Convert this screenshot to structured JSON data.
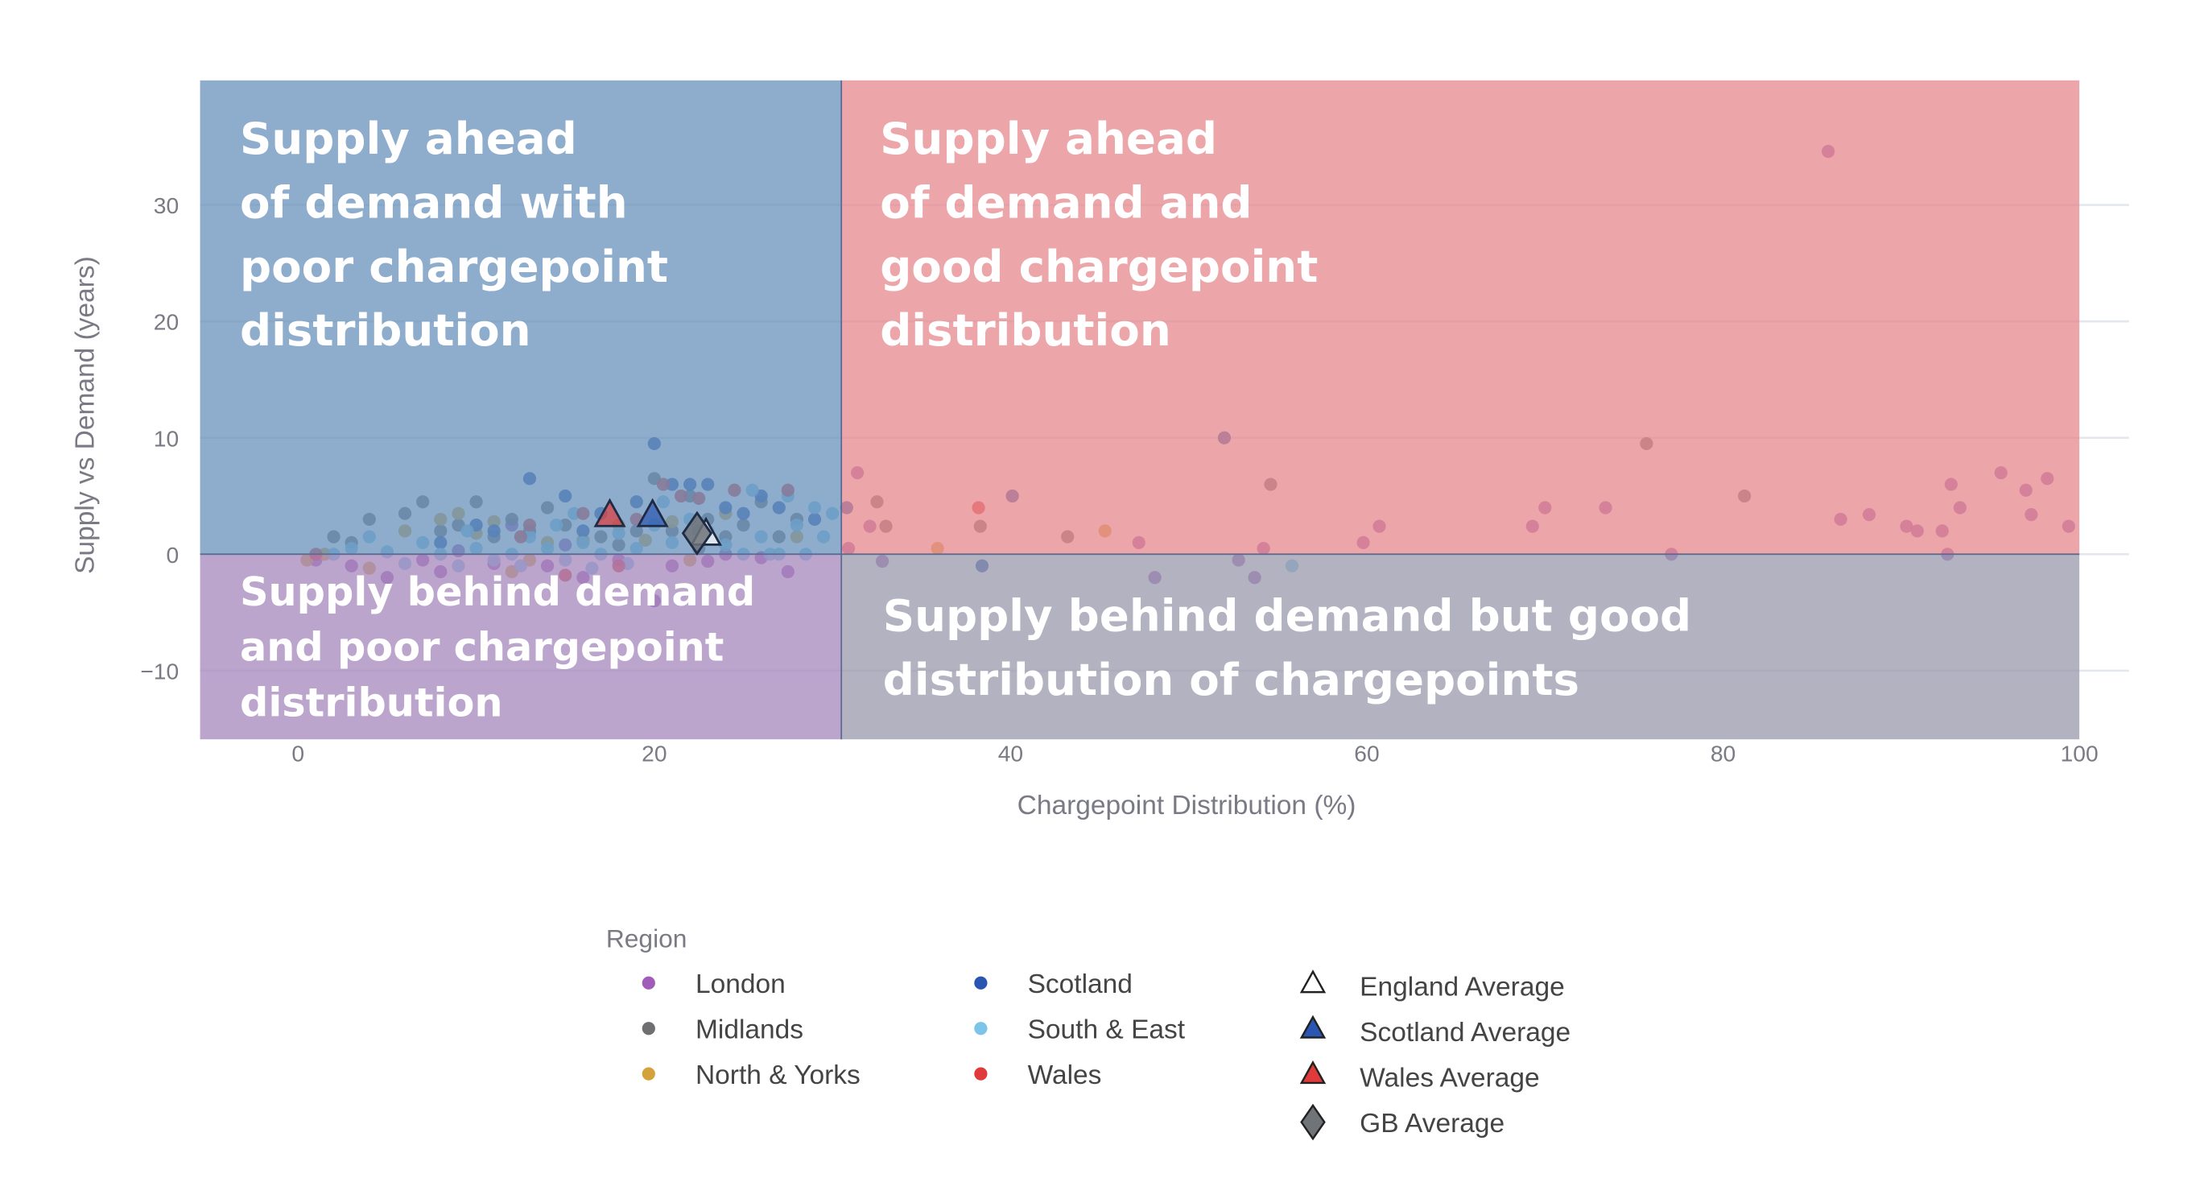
{
  "chart_data": {
    "type": "scatter",
    "xlabel": "Chargepoint Distribution (%)",
    "ylabel": "Supply vs Demand (years)",
    "xlim": [
      -5.5,
      100
    ],
    "ylim": [
      -15.9,
      40.7
    ],
    "xticks": [
      "0",
      "20",
      "40",
      "60",
      "80",
      "100"
    ],
    "yticks": [
      "30",
      "20",
      "10",
      "0",
      "−10"
    ],
    "xtick_values": [
      0,
      20,
      40,
      60,
      80,
      100
    ],
    "ytick_values": [
      30,
      20,
      10,
      0,
      -10
    ],
    "grid": true,
    "quadrant_split": {
      "x": 30.5,
      "y": 0
    },
    "quadrants": [
      {
        "lines": [
          "Supply ahead",
          "of demand with",
          "poor chargepoint",
          "distribution"
        ],
        "color": "#6892bb"
      },
      {
        "lines": [
          "Supply ahead",
          "of demand and",
          "good chargepoint",
          "distribution"
        ],
        "color": "#e6888e"
      },
      {
        "lines": [
          "Supply behind demand",
          "and poor chargepoint",
          "distribution"
        ],
        "color": "#a487bb"
      },
      {
        "lines": [
          "Supply behind demand but good",
          "distribution of chargepoints"
        ],
        "color": "#9a98ab"
      }
    ],
    "legend": {
      "title": "Region",
      "placement": "bottom",
      "regions": [
        {
          "name": "London",
          "color": "#a05cb8"
        },
        {
          "name": "Midlands",
          "color": "#6f6f72"
        },
        {
          "name": "North & Yorks",
          "color": "#d4a13a"
        },
        {
          "name": "Scotland",
          "color": "#2a55b0"
        },
        {
          "name": "South & East",
          "color": "#7cc4e8"
        },
        {
          "name": "Wales",
          "color": "#e03a3a"
        }
      ],
      "averages": [
        {
          "name": "England Average",
          "marker": "triangle",
          "color": "#ffffff"
        },
        {
          "name": "Scotland Average",
          "marker": "triangle",
          "color": "#2a55b0"
        },
        {
          "name": "Wales Average",
          "marker": "triangle",
          "color": "#e03a3a"
        },
        {
          "name": "GB Average",
          "marker": "diamond",
          "color": "#707378"
        }
      ]
    },
    "series": [
      {
        "name": "London",
        "points": [
          [
            1,
            -0.5
          ],
          [
            3,
            -1
          ],
          [
            5,
            -2
          ],
          [
            7,
            -0.5
          ],
          [
            8,
            -1.5
          ],
          [
            9,
            0.3
          ],
          [
            11,
            -0.8
          ],
          [
            12,
            2.5
          ],
          [
            14,
            -1
          ],
          [
            16,
            -2
          ],
          [
            18,
            -0.5
          ],
          [
            21,
            -1
          ],
          [
            24,
            0
          ],
          [
            26,
            -0.3
          ],
          [
            27.5,
            -1.5
          ],
          [
            20,
            -4
          ],
          [
            15,
            0.8
          ],
          [
            23,
            -0.6
          ],
          [
            85.9,
            34.6
          ],
          [
            31.4,
            7
          ],
          [
            32.1,
            2.4
          ],
          [
            30.9,
            0.5
          ],
          [
            32.8,
            -0.6
          ],
          [
            47.2,
            1
          ],
          [
            48.1,
            -2
          ],
          [
            52.8,
            -0.5
          ],
          [
            53.7,
            -2
          ],
          [
            54.2,
            0.5
          ],
          [
            59.8,
            1
          ],
          [
            60.7,
            2.4
          ],
          [
            69.3,
            2.4
          ],
          [
            70,
            4
          ],
          [
            73.4,
            4
          ],
          [
            77.1,
            0
          ],
          [
            86.6,
            3
          ],
          [
            88.2,
            3.4
          ],
          [
            90.3,
            2.4
          ],
          [
            90.9,
            2
          ],
          [
            92.3,
            2
          ],
          [
            92.6,
            0
          ],
          [
            92.8,
            6
          ],
          [
            93.3,
            4
          ],
          [
            95.6,
            7
          ],
          [
            97,
            5.5
          ],
          [
            97.3,
            3.4
          ],
          [
            98.2,
            6.5
          ],
          [
            99.4,
            2.4
          ]
        ]
      },
      {
        "name": "Midlands",
        "points": [
          [
            2,
            1.5
          ],
          [
            3,
            1
          ],
          [
            4,
            3
          ],
          [
            6,
            3.5
          ],
          [
            7,
            4.5
          ],
          [
            8,
            2
          ],
          [
            9,
            2.5
          ],
          [
            10,
            4.5
          ],
          [
            11,
            1.5
          ],
          [
            12,
            3
          ],
          [
            13,
            2
          ],
          [
            14,
            4
          ],
          [
            15,
            2.5
          ],
          [
            17,
            1.5
          ],
          [
            19,
            2
          ],
          [
            20,
            6.5
          ],
          [
            21,
            2
          ],
          [
            22,
            5
          ],
          [
            23,
            3
          ],
          [
            24,
            1.5
          ],
          [
            25,
            2.5
          ],
          [
            27,
            1.5
          ],
          [
            28,
            3
          ],
          [
            26,
            4.5
          ],
          [
            22.5,
            0.5
          ],
          [
            18,
            0.8
          ],
          [
            75.7,
            9.5
          ],
          [
            54.6,
            6
          ],
          [
            81.2,
            5
          ],
          [
            32.5,
            4.5
          ],
          [
            33,
            2.4
          ],
          [
            38.3,
            2.4
          ],
          [
            43.2,
            1.5
          ]
        ]
      },
      {
        "name": "North & Yorks",
        "points": [
          [
            0.5,
            -0.5
          ],
          [
            1.5,
            0
          ],
          [
            4,
            -1.2
          ],
          [
            6,
            2
          ],
          [
            8,
            3
          ],
          [
            9,
            3.5
          ],
          [
            10,
            1.8
          ],
          [
            11,
            2.8
          ],
          [
            13,
            -0.5
          ],
          [
            14,
            1
          ],
          [
            16,
            1.2
          ],
          [
            18,
            2.5
          ],
          [
            19.5,
            1.2
          ],
          [
            21,
            2.8
          ],
          [
            22,
            -0.5
          ],
          [
            24,
            3.5
          ],
          [
            28,
            1.5
          ],
          [
            12,
            -1.5
          ],
          [
            35.9,
            0.5
          ],
          [
            45.3,
            2
          ]
        ]
      },
      {
        "name": "Scotland",
        "points": [
          [
            13,
            6.5
          ],
          [
            20,
            9.5
          ],
          [
            15,
            5
          ],
          [
            10,
            2.5
          ],
          [
            17,
            3.5
          ],
          [
            21,
            6
          ],
          [
            22,
            6
          ],
          [
            23,
            6
          ],
          [
            24,
            4
          ],
          [
            25,
            3.5
          ],
          [
            26,
            5
          ],
          [
            27,
            4
          ],
          [
            29,
            3
          ],
          [
            8,
            1
          ],
          [
            11,
            2
          ],
          [
            19,
            4.5
          ],
          [
            16,
            2
          ],
          [
            52,
            10
          ],
          [
            40.1,
            5
          ],
          [
            30.8,
            4
          ],
          [
            38.4,
            -1
          ]
        ]
      },
      {
        "name": "South & East",
        "points": [
          [
            2,
            0
          ],
          [
            3,
            0.5
          ],
          [
            4,
            1.5
          ],
          [
            5,
            0.2
          ],
          [
            6,
            -0.8
          ],
          [
            7,
            1
          ],
          [
            8,
            0
          ],
          [
            9,
            -1
          ],
          [
            10,
            0.5
          ],
          [
            11,
            -0.5
          ],
          [
            12,
            0
          ],
          [
            13,
            1.5
          ],
          [
            14,
            0.5
          ],
          [
            15,
            -0.5
          ],
          [
            16,
            1
          ],
          [
            17,
            0
          ],
          [
            18,
            1.8
          ],
          [
            19,
            0.5
          ],
          [
            20,
            2.5
          ],
          [
            21,
            1
          ],
          [
            22,
            3
          ],
          [
            23,
            2
          ],
          [
            24,
            0.8
          ],
          [
            25,
            0
          ],
          [
            26,
            1.5
          ],
          [
            27,
            0
          ],
          [
            28,
            2.5
          ],
          [
            29,
            4
          ],
          [
            30,
            3.5
          ],
          [
            28.5,
            0
          ],
          [
            29.5,
            1.5
          ],
          [
            26.5,
            0
          ],
          [
            9.5,
            2
          ],
          [
            12.5,
            -1
          ],
          [
            14.5,
            2.5
          ],
          [
            16.5,
            -1.2
          ],
          [
            18.5,
            -0.8
          ],
          [
            20.5,
            4.5
          ],
          [
            22.5,
            2
          ],
          [
            25.5,
            5.5
          ],
          [
            27.5,
            5
          ],
          [
            15.5,
            3.5
          ],
          [
            55.8,
            -1
          ]
        ]
      },
      {
        "name": "Wales",
        "points": [
          [
            1,
            0
          ],
          [
            13,
            2.5
          ],
          [
            16,
            3.5
          ],
          [
            19,
            3
          ],
          [
            21.5,
            5
          ],
          [
            24.5,
            5.5
          ],
          [
            27.5,
            5.5
          ],
          [
            20.5,
            6
          ],
          [
            18,
            -1
          ],
          [
            12.5,
            1.5
          ],
          [
            15,
            -1.8
          ],
          [
            22.5,
            4.8
          ],
          [
            38.2,
            4
          ]
        ]
      }
    ],
    "average_points": [
      {
        "name": "England Average",
        "x": 22.9,
        "y": 1.8
      },
      {
        "name": "Scotland Average",
        "x": 19.9,
        "y": 3.4
      },
      {
        "name": "Wales Average",
        "x": 17.5,
        "y": 3.4
      },
      {
        "name": "GB Average",
        "x": 22.4,
        "y": 1.8
      }
    ]
  }
}
